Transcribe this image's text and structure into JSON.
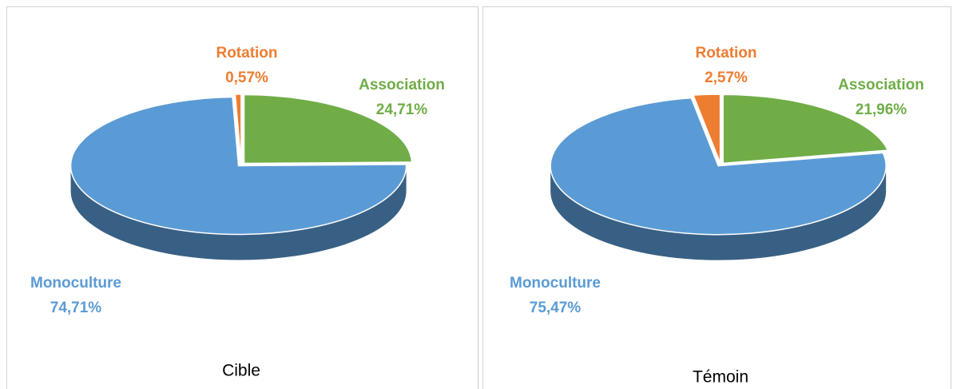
{
  "chart_data": [
    {
      "type": "pie",
      "title": "Cible",
      "categories": [
        "Association",
        "Monoculture",
        "Rotation"
      ],
      "values": [
        24.71,
        74.71,
        0.57
      ],
      "value_labels": [
        "24,71%",
        "74,71%",
        "0,57%"
      ],
      "colors": [
        "#70ad47",
        "#5b9bd5",
        "#ed7d31"
      ]
    },
    {
      "type": "pie",
      "title": "Témoin",
      "categories": [
        "Association",
        "Monoculture",
        "Rotation"
      ],
      "values": [
        21.96,
        75.47,
        2.57
      ],
      "value_labels": [
        "21,96%",
        "75,47%",
        "2,57%"
      ],
      "colors": [
        "#70ad47",
        "#5b9bd5",
        "#ed7d31"
      ]
    }
  ]
}
